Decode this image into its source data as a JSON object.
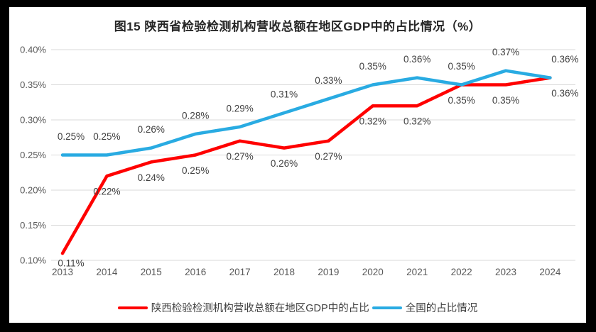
{
  "colors": {
    "page_background": "#000000",
    "chart_background": "#FFFFFF",
    "gridline": "#D9D9D9",
    "axis_text": "#595959",
    "data_label": "#404040",
    "title_text": "#262626",
    "series_shaanxi": "#FF0000",
    "series_national": "#29ABE2"
  },
  "chart_data": {
    "type": "line",
    "title": "图15 陕西省检验检测机构营收总额在地区GDP中的占比情况（%）",
    "categories": [
      "2013",
      "2014",
      "2015",
      "2016",
      "2017",
      "2018",
      "2019",
      "2020",
      "2021",
      "2022",
      "2023",
      "2024"
    ],
    "series": [
      {
        "name": "陕西检验检测机构营收总额在地区GDP中的占比",
        "color": "#FF0000",
        "values": [
          0.11,
          0.22,
          0.24,
          0.25,
          0.27,
          0.26,
          0.27,
          0.32,
          0.32,
          0.35,
          0.35,
          0.36
        ],
        "point_labels": [
          "0.11%",
          "0.22%",
          "0.24%",
          "0.25%",
          "0.27%",
          "0.26%",
          "0.27%",
          "0.32%",
          "0.32%",
          "0.35%",
          "0.35%",
          "0.36%"
        ],
        "label_position": "below"
      },
      {
        "name": "全国的占比情况",
        "color": "#29ABE2",
        "values": [
          0.25,
          0.25,
          0.26,
          0.28,
          0.29,
          0.31,
          0.33,
          0.35,
          0.36,
          0.35,
          0.37,
          0.36
        ],
        "point_labels": [
          "0.25%",
          "0.25%",
          "0.26%",
          "0.28%",
          "0.29%",
          "0.31%",
          "0.33%",
          "0.35%",
          "0.36%",
          "0.35%",
          "0.37%",
          "0.36%"
        ],
        "label_position": "above"
      }
    ],
    "xlabel": "",
    "ylabel": "",
    "ylim": [
      0.1,
      0.4
    ],
    "yticks": [
      "0.10%",
      "0.15%",
      "0.20%",
      "0.25%",
      "0.30%",
      "0.35%",
      "0.40%"
    ],
    "grid": "horizontal",
    "legend_position": "bottom",
    "unit": "%"
  }
}
